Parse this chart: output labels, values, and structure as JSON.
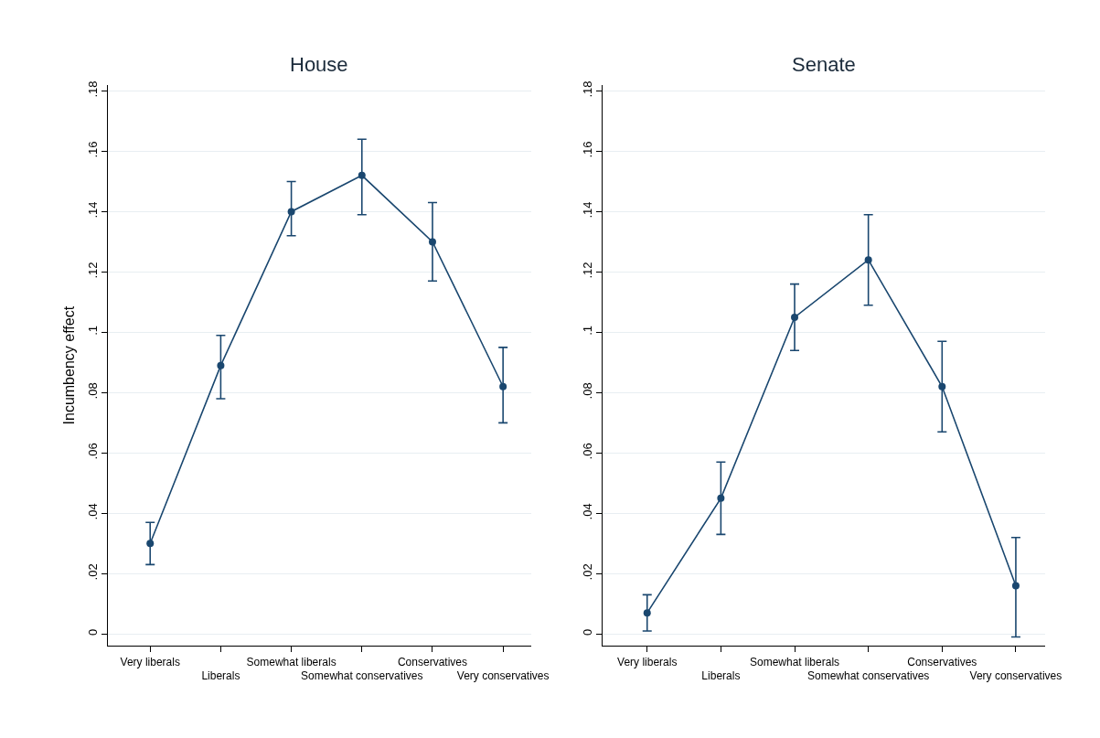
{
  "chart_data": [
    {
      "type": "line",
      "title": "House",
      "ylabel": "Incumbency effect",
      "categories": [
        "Very liberals",
        "Liberals",
        "Somewhat liberals",
        "Somewhat conservatives",
        "Conservatives",
        "Very conservatives"
      ],
      "series": [
        {
          "color": "#1a476f",
          "values": [
            0.03,
            0.089,
            0.14,
            0.152,
            0.13,
            0.082
          ],
          "errors": [
            [
              0.023,
              0.037
            ],
            [
              0.078,
              0.099
            ],
            [
              0.132,
              0.15
            ],
            [
              0.139,
              0.164
            ],
            [
              0.117,
              0.143
            ],
            [
              0.07,
              0.095
            ]
          ]
        }
      ],
      "ylim": [
        -0.004,
        0.182
      ],
      "yticks": [
        {
          "value": 0,
          "label": "0"
        },
        {
          "value": 0.02,
          "label": ".02"
        },
        {
          "value": 0.04,
          "label": ".04"
        },
        {
          "value": 0.06,
          "label": ".06"
        },
        {
          "value": 0.08,
          "label": ".08"
        },
        {
          "value": 0.1,
          "label": ".1"
        },
        {
          "value": 0.12,
          "label": ".12"
        },
        {
          "value": 0.14,
          "label": ".14"
        },
        {
          "value": 0.16,
          "label": ".16"
        },
        {
          "value": 0.18,
          "label": ".18"
        }
      ],
      "grid": "y",
      "marker": "circle",
      "line_style": "solid"
    },
    {
      "type": "line",
      "title": "Senate",
      "categories": [
        "Very liberals",
        "Liberals",
        "Somewhat liberals",
        "Somewhat conservatives",
        "Conservatives",
        "Very conservatives"
      ],
      "series": [
        {
          "color": "#1a476f",
          "values": [
            0.007,
            0.045,
            0.105,
            0.124,
            0.082,
            0.016
          ],
          "errors": [
            [
              0.001,
              0.013
            ],
            [
              0.033,
              0.057
            ],
            [
              0.094,
              0.116
            ],
            [
              0.109,
              0.139
            ],
            [
              0.067,
              0.097
            ],
            [
              -0.001,
              0.032
            ]
          ]
        }
      ],
      "ylim": [
        -0.004,
        0.182
      ],
      "yticks": [
        {
          "value": 0,
          "label": "0"
        },
        {
          "value": 0.02,
          "label": ".02"
        },
        {
          "value": 0.04,
          "label": ".04"
        },
        {
          "value": 0.06,
          "label": ".06"
        },
        {
          "value": 0.08,
          "label": ".08"
        },
        {
          "value": 0.1,
          "label": ".1"
        },
        {
          "value": 0.12,
          "label": ".12"
        },
        {
          "value": 0.14,
          "label": ".14"
        },
        {
          "value": 0.16,
          "label": ".16"
        },
        {
          "value": 0.18,
          "label": ".18"
        }
      ],
      "grid": "y",
      "marker": "circle",
      "line_style": "solid"
    }
  ]
}
